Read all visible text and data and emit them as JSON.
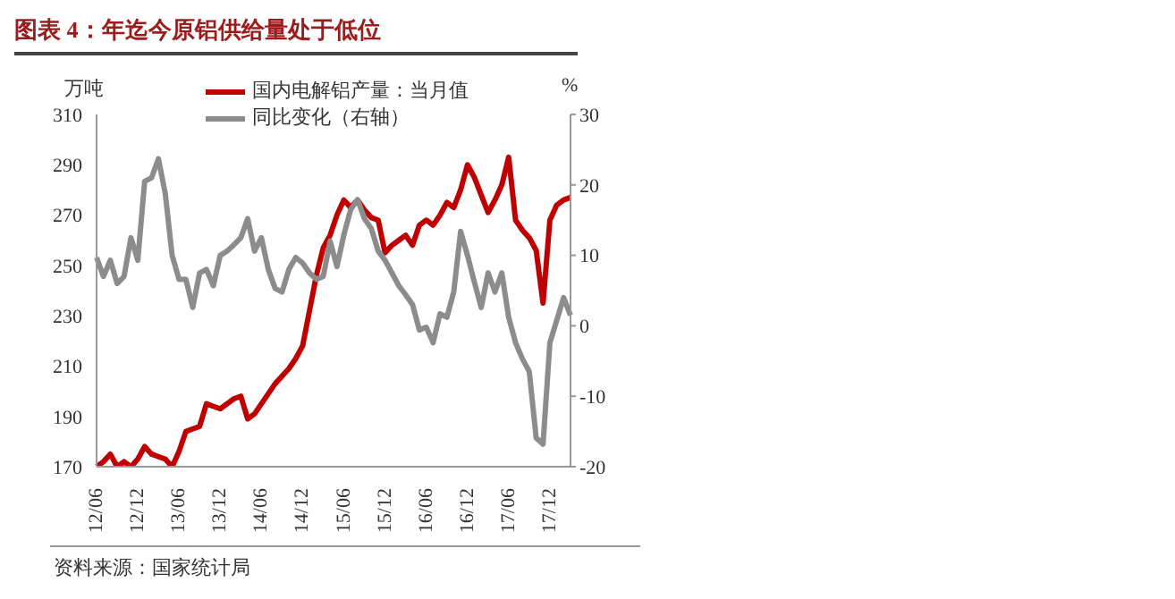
{
  "chart_data": {
    "type": "line",
    "title": "图表 4：年迄今原铝供给量处于低位",
    "ylabel": "万吨",
    "y2label": "%",
    "annotations": [
      "资料来源：国家统计局"
    ],
    "categories": [
      "12/06",
      null,
      null,
      null,
      null,
      null,
      "12/12",
      null,
      null,
      null,
      null,
      null,
      "13/06",
      null,
      null,
      null,
      null,
      null,
      "13/12",
      null,
      null,
      null,
      null,
      null,
      "14/06",
      null,
      null,
      null,
      null,
      null,
      "14/12",
      null,
      null,
      null,
      null,
      null,
      "15/06",
      null,
      null,
      null,
      null,
      null,
      "15/12",
      null,
      null,
      null,
      null,
      null,
      "16/06",
      null,
      null,
      null,
      null,
      null,
      "16/12",
      null,
      null,
      null,
      null,
      null,
      "17/06",
      null,
      null,
      null,
      null,
      null,
      "17/12",
      null,
      null,
      null
    ],
    "series": [
      {
        "name": "国内电解铝产量：当月值",
        "color": "#c00000",
        "values": [
          170,
          172,
          175,
          170,
          172,
          170,
          173,
          178,
          175,
          174,
          173,
          170,
          176,
          184,
          185,
          186,
          195,
          194,
          193,
          195,
          197,
          198,
          189,
          191,
          195,
          199,
          203,
          206,
          209,
          213,
          218,
          232,
          246,
          257,
          262,
          270,
          276,
          273,
          276,
          272,
          269,
          268,
          255,
          258,
          260,
          262,
          258,
          266,
          268,
          266,
          270,
          275,
          273,
          280,
          290,
          285,
          278,
          271,
          276,
          282,
          293,
          268,
          264,
          261,
          256,
          235,
          268,
          274,
          276,
          277
        ]
      },
      {
        "name": "同比变化（右轴）",
        "color": "#8c8c8c",
        "axis": "y2",
        "values": [
          9.7,
          7,
          9.3,
          6,
          7,
          12.5,
          9.3,
          20.5,
          21,
          23.7,
          18.8,
          10,
          6.6,
          6.6,
          2.6,
          7.5,
          8,
          5.7,
          10,
          10.6,
          11.5,
          12.5,
          15.2,
          10.6,
          12.5,
          8,
          5.3,
          4.8,
          8,
          9.7,
          8.9,
          7.5,
          6.6,
          7,
          12,
          8.4,
          12.9,
          16.5,
          17.9,
          15.2,
          13.8,
          10.6,
          9.3,
          7.5,
          5.7,
          4.4,
          3,
          -0.6,
          -0.2,
          -2.4,
          1.7,
          1.2,
          4.8,
          13.4,
          10,
          6.2,
          2.6,
          7.5,
          4.8,
          7.5,
          1.2,
          -2.4,
          -4.7,
          -6.5,
          -15.9,
          -16.8,
          -2.4,
          0.8,
          4,
          1.5
        ]
      }
    ],
    "ylim": [
      170,
      310
    ],
    "yticks": [
      170,
      190,
      210,
      230,
      250,
      270,
      290,
      310
    ],
    "y2lim": [
      -20,
      30
    ],
    "y2ticks": [
      -20,
      -10,
      0,
      10,
      20,
      30
    ],
    "legend": "top right",
    "grid": false,
    "marker": "none",
    "line_style": "solid"
  }
}
